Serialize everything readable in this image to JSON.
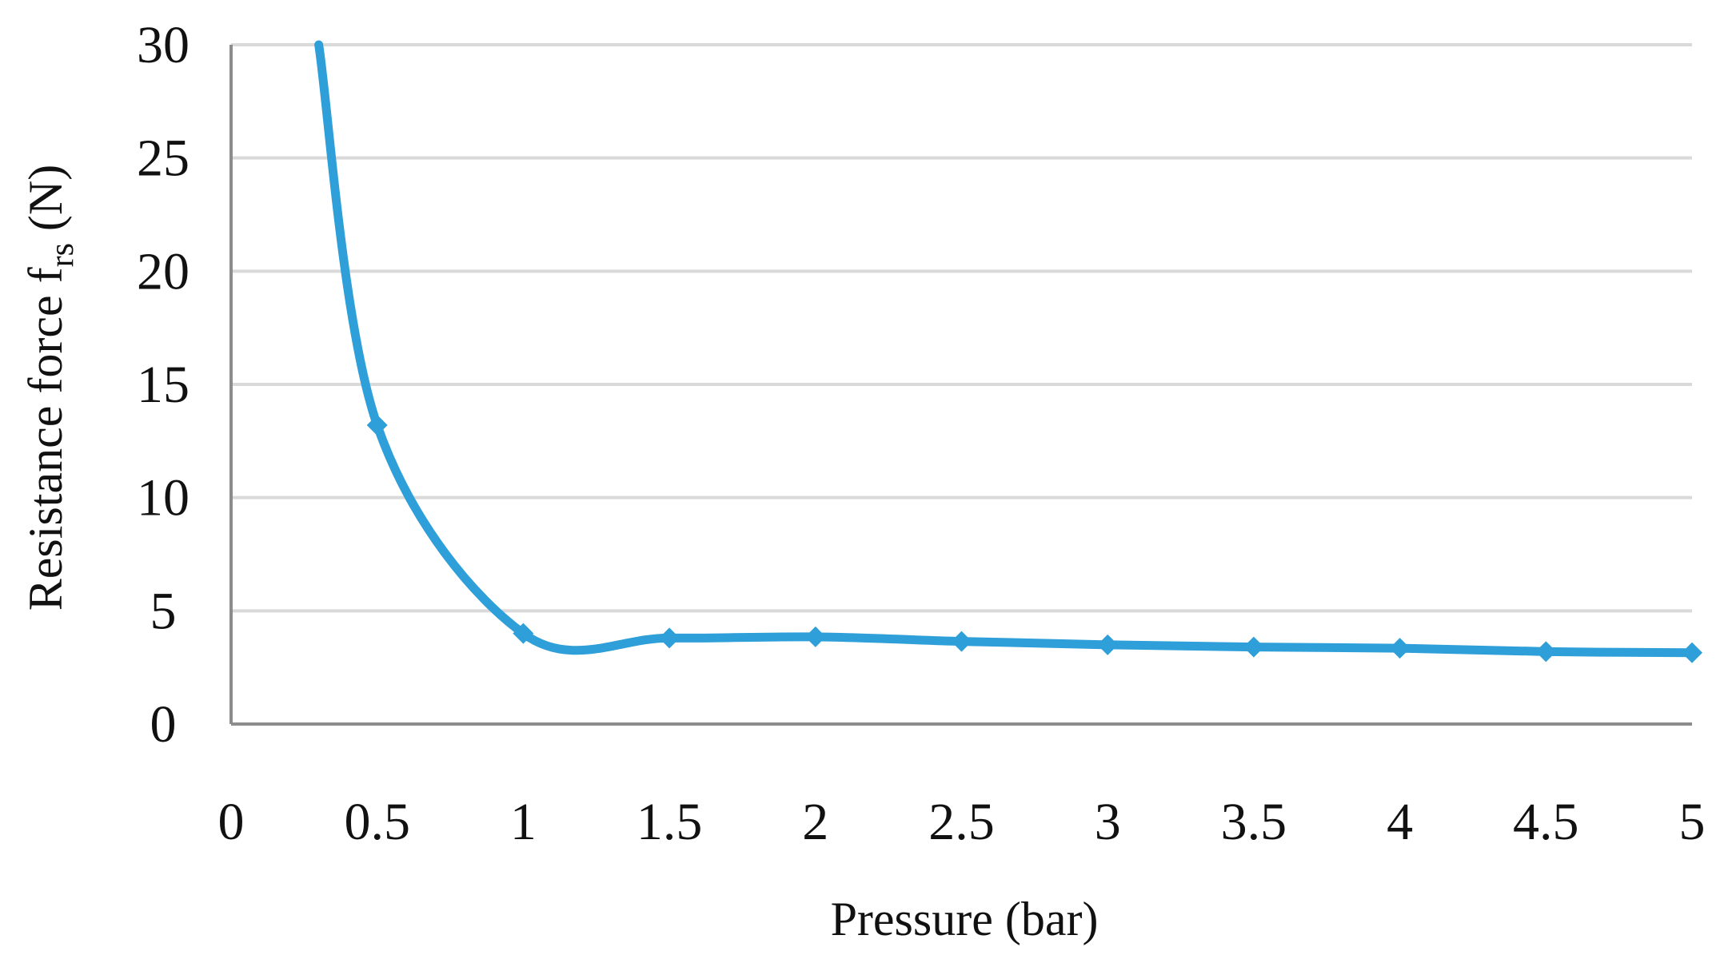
{
  "chart_data": {
    "type": "line",
    "title": "",
    "xlabel": "Pressure (bar)",
    "ylabel": {
      "main": "Resistance force f",
      "subscript": "rs",
      "unit": " (N)"
    },
    "xlim": [
      0,
      5
    ],
    "ylim": [
      0,
      30
    ],
    "x_ticks": [
      "0",
      "0.5",
      "1",
      "1.5",
      "2",
      "2.5",
      "3",
      "3.5",
      "4",
      "4.5",
      "5"
    ],
    "y_ticks": [
      "0",
      "5",
      "10",
      "15",
      "20",
      "25",
      "30"
    ],
    "x_tick_values": [
      0,
      0.5,
      1,
      1.5,
      2,
      2.5,
      3,
      3.5,
      4,
      4.5,
      5
    ],
    "y_tick_values": [
      0,
      5,
      10,
      15,
      20,
      25,
      30
    ],
    "grid": "horizontal",
    "legend": "none",
    "series": [
      {
        "name": "Resistance force",
        "color": "#2e9fd8",
        "marker": "diamond",
        "x": [
          0.5,
          1,
          1.5,
          2,
          2.5,
          3,
          3.5,
          4,
          4.5,
          5
        ],
        "values": [
          13.2,
          4.0,
          3.8,
          3.85,
          3.65,
          3.5,
          3.4,
          3.35,
          3.2,
          3.15
        ],
        "offscale_start": {
          "x": 0.3,
          "y": 30
        }
      }
    ]
  }
}
